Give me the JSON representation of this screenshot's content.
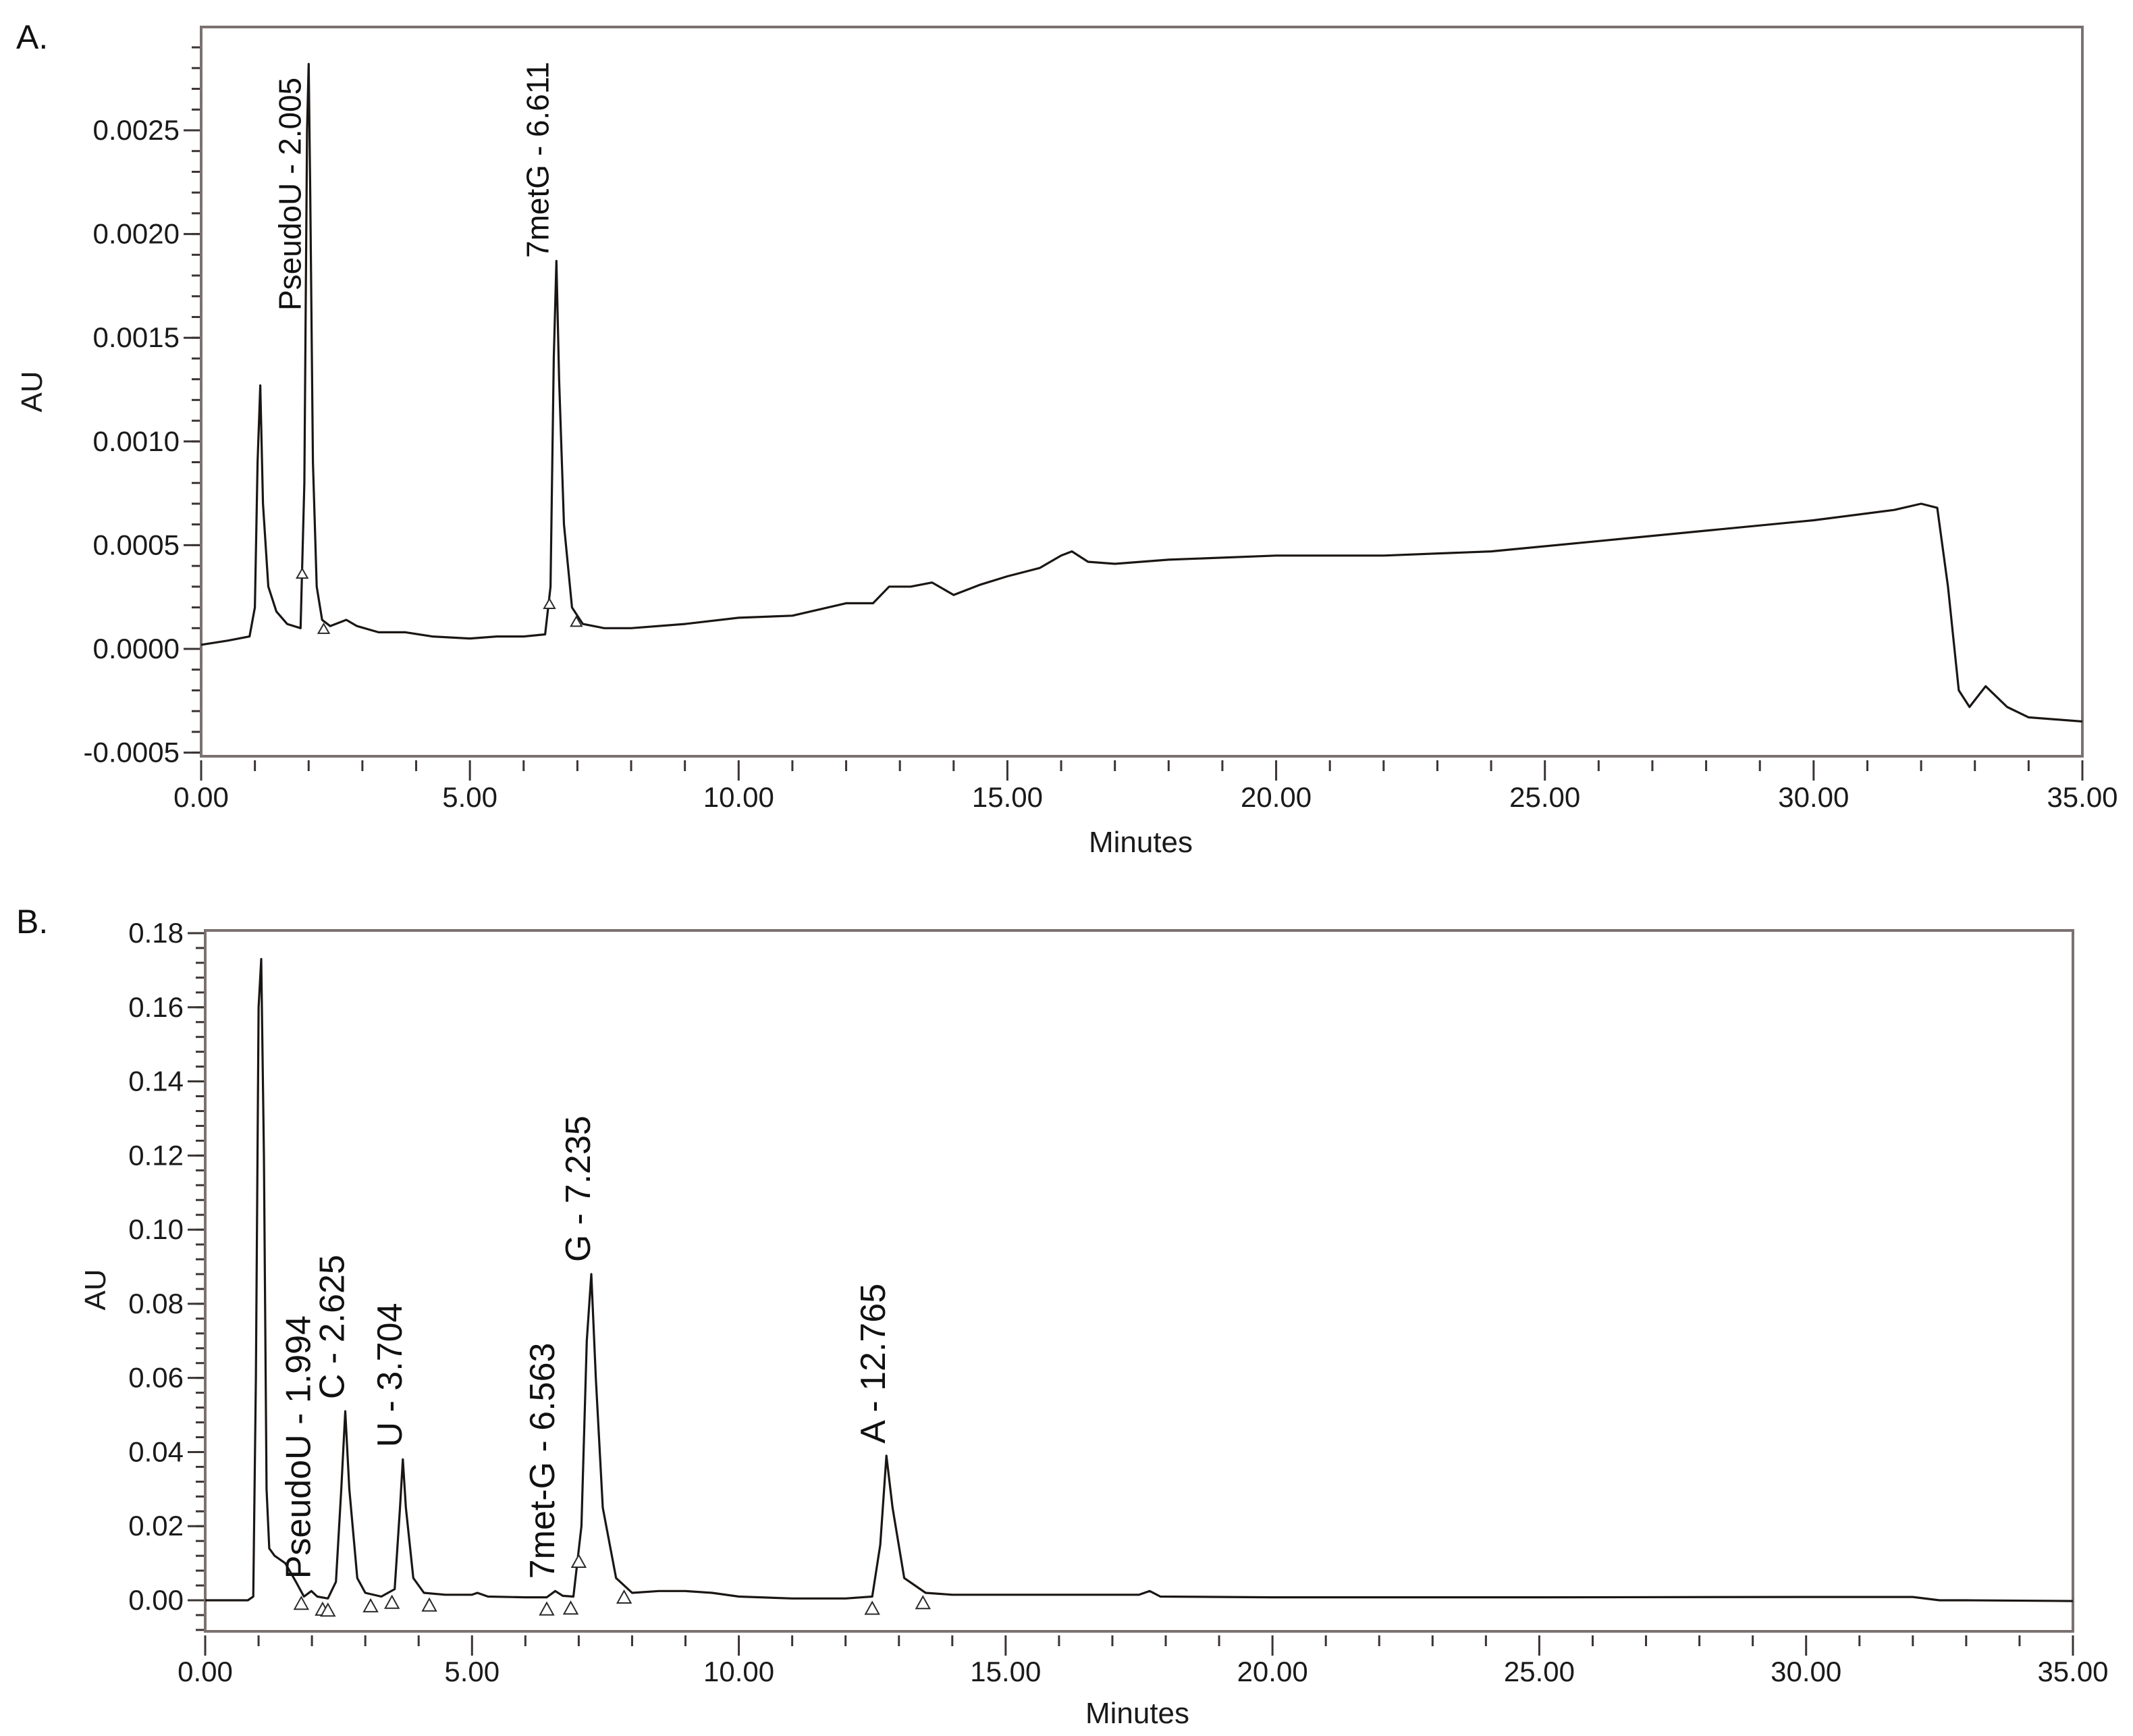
{
  "chart_data": [
    {
      "id": "A",
      "type": "line",
      "panel_label": "A.",
      "title": "",
      "xlabel": "Minutes",
      "ylabel": "AU",
      "xlim": [
        0,
        35
      ],
      "ylim": [
        -0.0005,
        0.0028
      ],
      "x_ticks": [
        "0.00",
        "5.00",
        "10.00",
        "15.00",
        "20.00",
        "25.00",
        "30.00",
        "35.00"
      ],
      "y_ticks": [
        "-0.0005",
        "0.0000",
        "0.0005",
        "0.0010",
        "0.0015",
        "0.0020",
        "0.0025"
      ],
      "grid": false,
      "legend": null,
      "peaks": [
        {
          "label": "PseudoU - 2.005",
          "rt": 2.005,
          "height": 0.00282
        },
        {
          "label": "7metG - 6.611",
          "rt": 6.611,
          "height": 0.00187
        }
      ],
      "unlabeled_peaks": [
        {
          "rt": 1.1,
          "height": 0.00127
        }
      ],
      "baseline_markers": [
        1.88,
        2.28,
        6.48,
        6.98
      ],
      "series": [
        {
          "name": "trace",
          "x": [
            0,
            0.5,
            0.9,
            1.0,
            1.05,
            1.1,
            1.15,
            1.25,
            1.4,
            1.6,
            1.85,
            1.92,
            1.97,
            2.0,
            2.03,
            2.08,
            2.15,
            2.25,
            2.4,
            2.7,
            2.9,
            3.3,
            3.8,
            4.3,
            5.0,
            5.5,
            6.0,
            6.4,
            6.5,
            6.56,
            6.61,
            6.66,
            6.75,
            6.9,
            7.1,
            7.5,
            8.0,
            9.0,
            10.0,
            11.0,
            12.0,
            12.5,
            12.8,
            13.2,
            13.6,
            14.0,
            14.5,
            15.0,
            15.6,
            16.0,
            16.2,
            16.5,
            17.0,
            18.0,
            20.0,
            22.0,
            24.0,
            26.0,
            28.0,
            30.0,
            31.5,
            32.0,
            32.3,
            32.5,
            32.7,
            32.9,
            33.2,
            33.6,
            34.0,
            35.0
          ],
          "y": [
            2e-05,
            4e-05,
            6e-05,
            0.0002,
            0.0009,
            0.00127,
            0.0007,
            0.0003,
            0.00018,
            0.00012,
            0.0001,
            0.0008,
            0.0025,
            0.00282,
            0.0022,
            0.0009,
            0.0003,
            0.00014,
            0.00011,
            0.00014,
            0.00011,
            8e-05,
            8e-05,
            6e-05,
            5e-05,
            6e-05,
            6e-05,
            7e-05,
            0.0003,
            0.0014,
            0.00187,
            0.0013,
            0.0006,
            0.0002,
            0.00012,
            0.0001,
            0.0001,
            0.00012,
            0.00015,
            0.00016,
            0.00022,
            0.00022,
            0.0003,
            0.0003,
            0.00032,
            0.00026,
            0.00031,
            0.00035,
            0.00039,
            0.00045,
            0.00047,
            0.00042,
            0.00041,
            0.00043,
            0.00045,
            0.00045,
            0.00047,
            0.00052,
            0.00057,
            0.00062,
            0.00067,
            0.0007,
            0.00068,
            0.0003,
            -0.0002,
            -0.00028,
            -0.00018,
            -0.00028,
            -0.00033,
            -0.00035
          ]
        }
      ]
    },
    {
      "id": "B",
      "type": "line",
      "panel_label": "B.",
      "title": "",
      "xlabel": "Minutes",
      "ylabel": "AU",
      "xlim": [
        0,
        35
      ],
      "ylim": [
        -0.009,
        0.18
      ],
      "x_ticks": [
        "0.00",
        "5.00",
        "10.00",
        "15.00",
        "20.00",
        "25.00",
        "30.00",
        "35.00"
      ],
      "y_ticks": [
        "0.00",
        "0.02",
        "0.04",
        "0.06",
        "0.08",
        "0.10",
        "0.12",
        "0.14",
        "0.16",
        "0.18"
      ],
      "grid": false,
      "legend": null,
      "peaks": [
        {
          "label": "PseudoU - 1.994",
          "rt": 1.994,
          "height": 0.0025
        },
        {
          "label": "C - 2.625",
          "rt": 2.625,
          "height": 0.051
        },
        {
          "label": "U - 3.704",
          "rt": 3.704,
          "height": 0.038
        },
        {
          "label": "7met-G - 6.563",
          "rt": 6.563,
          "height": 0.0025
        },
        {
          "label": "G - 7.235",
          "rt": 7.235,
          "height": 0.088
        },
        {
          "label": "A - 12.765",
          "rt": 12.765,
          "height": 0.039
        }
      ],
      "unlabeled_peaks": [
        {
          "rt": 1.1,
          "height": 0.173
        }
      ],
      "baseline_markers": [
        1.8,
        2.2,
        2.3,
        3.1,
        3.5,
        4.2,
        6.4,
        6.85,
        7.0,
        7.85,
        12.5,
        13.45
      ],
      "series": [
        {
          "name": "trace",
          "x": [
            0,
            0.8,
            0.9,
            0.95,
            1.0,
            1.05,
            1.1,
            1.15,
            1.2,
            1.3,
            1.5,
            1.7,
            1.85,
            1.99,
            2.1,
            2.3,
            2.45,
            2.55,
            2.625,
            2.7,
            2.85,
            3.0,
            3.3,
            3.55,
            3.65,
            3.704,
            3.76,
            3.9,
            4.1,
            4.5,
            5.0,
            5.1,
            5.3,
            6.0,
            6.4,
            6.56,
            6.7,
            6.9,
            7.05,
            7.15,
            7.235,
            7.32,
            7.45,
            7.7,
            8.0,
            8.5,
            9.0,
            9.5,
            10.0,
            11.0,
            12.0,
            12.5,
            12.65,
            12.765,
            12.88,
            13.1,
            13.5,
            14.0,
            15.0,
            17.5,
            17.7,
            17.9,
            20.0,
            25.0,
            30.0,
            32.0,
            32.5,
            33.0,
            35.0
          ],
          "y": [
            0,
            0,
            0.001,
            0.06,
            0.16,
            0.173,
            0.12,
            0.03,
            0.014,
            0.012,
            0.01,
            0.005,
            0.001,
            0.0025,
            0.001,
            0.0005,
            0.005,
            0.03,
            0.051,
            0.03,
            0.006,
            0.002,
            0.001,
            0.003,
            0.025,
            0.038,
            0.025,
            0.006,
            0.002,
            0.0015,
            0.0015,
            0.002,
            0.001,
            0.0008,
            0.0008,
            0.0025,
            0.0012,
            0.001,
            0.02,
            0.07,
            0.088,
            0.06,
            0.025,
            0.006,
            0.002,
            0.0025,
            0.0025,
            0.002,
            0.001,
            0.0005,
            0.0005,
            0.001,
            0.015,
            0.039,
            0.025,
            0.006,
            0.002,
            0.0015,
            0.0015,
            0.0015,
            0.0025,
            0.001,
            0.0008,
            0.0008,
            0.0009,
            0.0009,
            0.0,
            0.0,
            -0.0002
          ]
        }
      ]
    }
  ]
}
